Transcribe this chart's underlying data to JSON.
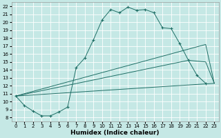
{
  "xlabel": "Humidex (Indice chaleur)",
  "bg_color": "#c5e8e5",
  "grid_color": "#b8d8d5",
  "line_color": "#1e6e65",
  "xlim": [
    -0.5,
    23.5
  ],
  "ylim": [
    7.5,
    22.5
  ],
  "xticks": [
    0,
    1,
    2,
    3,
    4,
    5,
    6,
    7,
    8,
    9,
    10,
    11,
    12,
    13,
    14,
    15,
    16,
    17,
    18,
    19,
    20,
    21,
    22,
    23
  ],
  "yticks": [
    8,
    9,
    10,
    11,
    12,
    13,
    14,
    15,
    16,
    17,
    18,
    19,
    20,
    21,
    22
  ],
  "curve1_x": [
    0,
    1,
    2,
    3,
    4,
    5,
    6,
    7,
    8,
    9,
    10,
    11,
    12,
    13,
    14,
    15,
    16,
    17,
    18,
    19,
    20,
    21,
    22
  ],
  "curve1_y": [
    10.7,
    9.5,
    8.8,
    8.2,
    8.2,
    8.7,
    9.3,
    14.3,
    15.5,
    17.8,
    20.3,
    21.6,
    21.2,
    21.9,
    21.5,
    21.6,
    21.2,
    19.3,
    19.2,
    17.3,
    15.2,
    13.3,
    12.3
  ],
  "curve2_x": [
    0,
    22,
    23
  ],
  "curve2_y": [
    10.7,
    17.2,
    12.3
  ],
  "curve3_x": [
    0,
    20,
    22,
    23
  ],
  "curve3_y": [
    10.7,
    15.2,
    15.0,
    12.3
  ],
  "curve4_x": [
    0,
    23
  ],
  "curve4_y": [
    10.7,
    12.3
  ],
  "xlabel_fontsize": 6.5,
  "tick_fontsize": 5.0
}
